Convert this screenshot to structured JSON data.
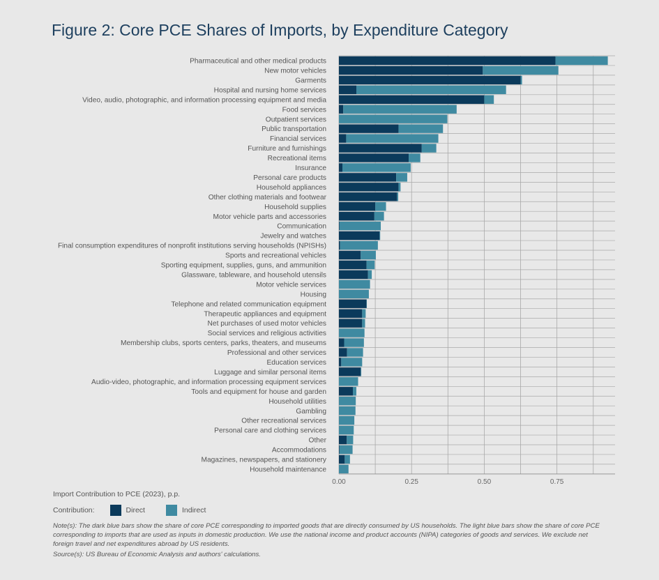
{
  "colors": {
    "direct": "#0b3a5b",
    "indirect": "#3f8aa1",
    "grid": "#a9a9a9",
    "axis": "#888888"
  },
  "chart_data": {
    "type": "bar",
    "orientation": "horizontal",
    "stacked": true,
    "title": "Figure 2: Core PCE Shares of Imports, by Expenditure Category",
    "xlabel": "Import Contribution to PCE (2023), p.p.",
    "xlim": [
      0,
      0.95
    ],
    "xticks": [
      0.0,
      0.25,
      0.5,
      0.75
    ],
    "xtick_labels": [
      "0.00",
      "0.25",
      "0.50",
      "0.75"
    ],
    "grid": true,
    "legend_title": "Contribution:",
    "categories": [
      "Pharmaceutical and other medical products",
      "New motor vehicles",
      "Garments",
      "Hospital and nursing home services",
      "Video, audio, photographic, and information processing equipment and media",
      "Food services",
      "Outpatient services",
      "Public transportation",
      "Financial services",
      "Furniture and furnishings",
      "Recreational items",
      "Insurance",
      "Personal care products",
      "Household appliances",
      "Other clothing materials and footwear",
      "Household supplies",
      "Motor vehicle parts and accessories",
      "Communication",
      "Jewelry and watches",
      "Final consumption expenditures of nonprofit institutions serving households (NPISHs)",
      "Sports and recreational vehicles",
      "Sporting equipment, supplies, guns, and ammunition",
      "Glassware, tableware, and household utensils",
      "Motor vehicle services",
      "Housing",
      "Telephone and related communication equipment",
      "Therapeutic appliances and equipment",
      "Net purchases of used motor vehicles",
      "Social services and religious activities",
      "Membership clubs, sports centers, parks, theaters, and museums",
      "Professional and other services",
      "Education services",
      "Luggage and similar personal items",
      "Audio-video, photographic, and information processing equipment services",
      "Tools and equipment for house and garden",
      "Household utilities",
      "Gambling",
      "Other recreational services",
      "Personal care and clothing services",
      "Other",
      "Accommodations",
      "Magazines, newspapers, and stationery",
      "Household maintenance"
    ],
    "series": [
      {
        "name": "Direct",
        "values": [
          0.745,
          0.495,
          0.625,
          0.06,
          0.5,
          0.015,
          0.0,
          0.205,
          0.025,
          0.285,
          0.24,
          0.012,
          0.197,
          0.205,
          0.2,
          0.125,
          0.122,
          0.002,
          0.14,
          0.004,
          0.075,
          0.095,
          0.1,
          0.0,
          0.0,
          0.095,
          0.08,
          0.08,
          0.0,
          0.018,
          0.028,
          0.008,
          0.075,
          0.0,
          0.048,
          0.0,
          0.0,
          0.0,
          0.0,
          0.027,
          0.002,
          0.02,
          0.0
        ]
      },
      {
        "name": "Indirect",
        "values": [
          0.18,
          0.26,
          0.005,
          0.515,
          0.033,
          0.39,
          0.373,
          0.153,
          0.317,
          0.05,
          0.04,
          0.235,
          0.038,
          0.007,
          0.004,
          0.037,
          0.033,
          0.142,
          0.002,
          0.13,
          0.052,
          0.028,
          0.013,
          0.107,
          0.103,
          0.001,
          0.012,
          0.01,
          0.088,
          0.068,
          0.055,
          0.072,
          0.002,
          0.066,
          0.012,
          0.058,
          0.057,
          0.053,
          0.051,
          0.022,
          0.045,
          0.018,
          0.033
        ]
      }
    ]
  },
  "note": "Note(s): The dark blue bars show the share of core PCE corresponding to imported goods that are directly consumed by US households. The light blue bars show the share of core PCE corresponding to imports that are used as inputs in domestic production. We use the national income and product accounts (NIPA) categories of goods and services. We exclude net foreign travel and net expenditures abroad by US residents.",
  "source": "Source(s): US Bureau of Economic Analysis and authors' calculations."
}
